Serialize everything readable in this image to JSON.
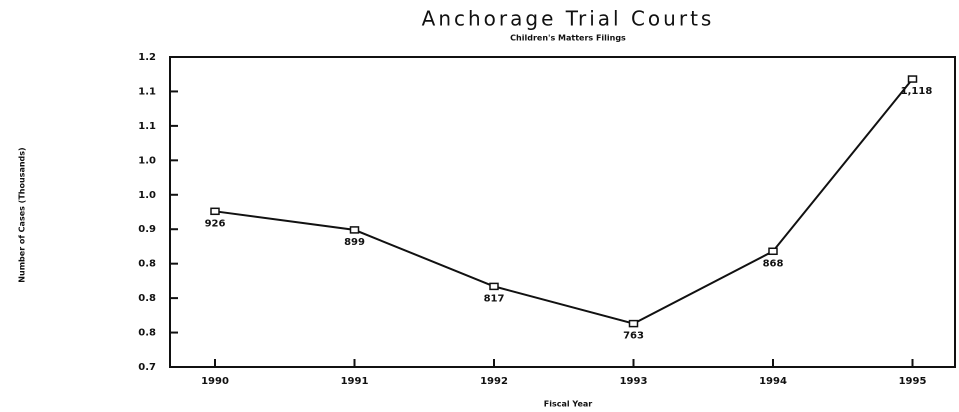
{
  "chart_data": {
    "type": "line",
    "title": "Anchorage Trial Courts",
    "subtitle": "Children's Matters Filings",
    "y_label": "Number of Cases (Thousands)",
    "x_label": "Fiscal Year",
    "categories": [
      "1990",
      "1991",
      "1992",
      "1993",
      "1994",
      "1995"
    ],
    "series": [
      {
        "name": "Children's Matters Filings",
        "color": "#111111",
        "values": [
          0.926,
          0.899,
          0.817,
          0.763,
          0.868,
          1.118
        ],
        "value_labels": [
          "926",
          "899",
          "817",
          "763",
          "868",
          "1,118"
        ]
      }
    ],
    "ylim": [
      0.7,
      1.15
    ],
    "yticks": [
      {
        "value": 0.7,
        "label": "0.7"
      },
      {
        "value": 0.75,
        "label": "0.8"
      },
      {
        "value": 0.8,
        "label": "0.8"
      },
      {
        "value": 0.85,
        "label": "0.8"
      },
      {
        "value": 0.9,
        "label": "0.9"
      },
      {
        "value": 0.95,
        "label": "1.0"
      },
      {
        "value": 1.0,
        "label": "1.0"
      },
      {
        "value": 1.05,
        "label": "1.1"
      },
      {
        "value": 1.1,
        "label": "1.1"
      },
      {
        "value": 1.15,
        "label": "1.2"
      }
    ],
    "grid": false
  }
}
